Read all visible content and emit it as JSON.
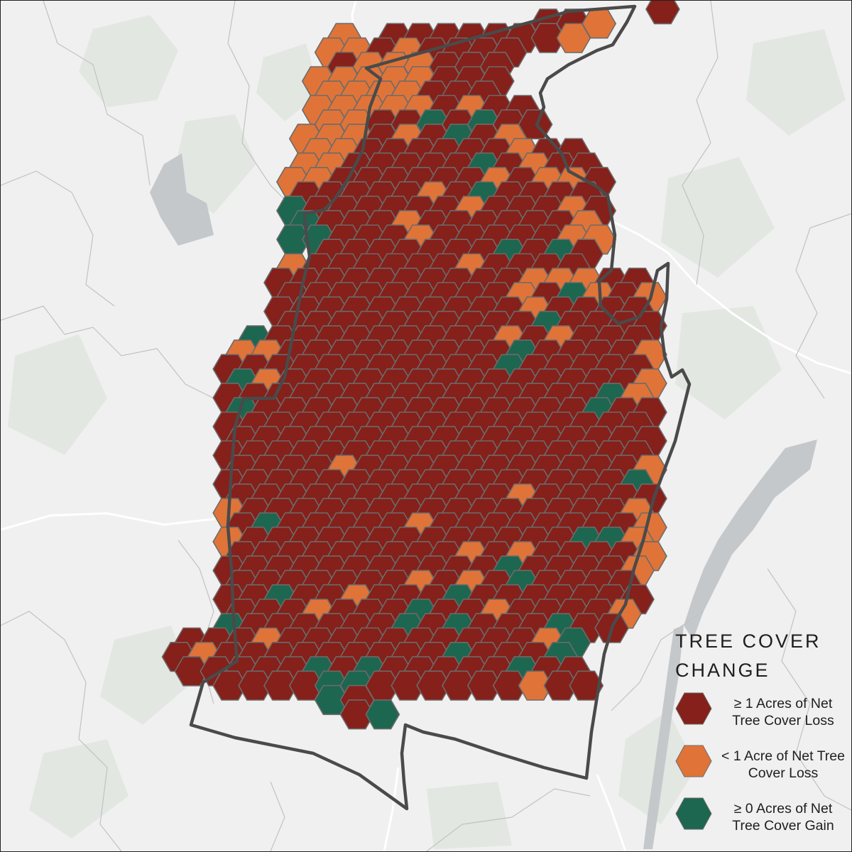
{
  "colors": {
    "background": "#f0f0f0",
    "land_patch": "#e2e7e2",
    "roads": "#ffffff",
    "boundaries": "#c2c2c2",
    "water": "#c5c8cb",
    "outline": "#4a4a4a",
    "hex_border": "#6b6b6b",
    "net_loss_ge1": "#85201a",
    "net_loss_lt1": "#e07438",
    "net_gain": "#1d6650"
  },
  "legend": {
    "title": "TREE COVER CHANGE",
    "items": [
      {
        "key": "net_loss_ge1",
        "label": "≥ 1 Acres of Net Tree Cover Loss"
      },
      {
        "key": "net_loss_lt1",
        "label": "< 1 Acre of Net Tree Cover Loss"
      },
      {
        "key": "net_gain",
        "label": "≥ 0 Acres of Net Tree Cover Gain"
      }
    ]
  },
  "hexbins": {
    "category_codes": {
      "R": "net_loss_ge1",
      "O": "net_loss_lt1",
      "G": "net_gain",
      ".": "none"
    },
    "rows": [
      "....................................................R....",
      "...........................................R.R.O.........",
      "...........................O...R.R.R.R.R.R.R.O...........",
      "..........................O.O.R.O.R.R.R.R................",
      "...........................R.O.O.O.R.R.R.................",
      ".........................O.O.O.O.O.R.R.R.................",
      "..........................O.O.O.O.R.R.R..................",
      ".........................O.O.O.O.O.R.O.R.R...............",
      "..........................O.O.R.R.G.R.G.R.R..............",
      "........................O.O.O.R.O.R.G.R.O................",
      ".........................O.O.R.R.R.R.R.R.O.R.R...........",
      "........................O.O.R.R.R.R.R.G.R.O.R.R..........",
      ".......................O.O.R.R.R.R.R.R.O.R.O.O.R.........",
      "........................R.R.R.R.R.O.R.G.R.R.R.R..........",
      ".......................G.R.R.R.R.R.R.O.R.R.R.O.R.........",
      "........................G.R.R.R.O.R.R.R.R.R.R.O..........",
      ".......................G.G.R.R.R.O.R.R.R.R.R.O.O.........",
      "..........................R.R.R.R.R.R.R.G.R.G.R..........",
      ".......................O.R.R.R.R.R.R.O.R.R.R.R...........",
      "......................R.R.R.R.R.R.R.R.R.R.O.O.O.R.R......",
      ".......................R.R.R.R.R.R.R.R.R.O.R.G.O.R.O.....",
      "......................R.R.R.R.R.R.R.R.R.R.O.R.R.R.R......",
      ".......................R.R.R.R.R.R.R.R.R.R.G.R.R.R.R.....",
      "....................G.R.R.R.R.R.R.R.R.R.O.R.O.R.R.R......",
      "...................O.O.R.R.R.R.R.R.R.R.R.G.R.R.R.R.O.....",
      "..................R.R.R.R.R.R.R.R.R.R.R.G.R.R.R.R.R......",
      "...................G.O.R.R.R.R.R.R.R.R.R.R.R.R.R.R.O.....",
      "..................R.R.R.R.R.R.R.R.R.R.R.R.R.R.R.G.O......",
      "...................G.R.R.R.R.R.R.R.R.R.R.R.R.R.G.R.R.....",
      "..................R.R.R.R.R.R.R.R.R.R.R.R.R.R.R.R.R......",
      "...................R.R.R.R.R.R.R.R.R.R.R.R.R.R.R.R.R.....",
      "..................R.R.R.R.R.R.R.R.R.R.R.R.R.R.R.R.R......",
      "...................R.R.R.R.O.R.R.R.R.R.R.R.R.R.R.R.O.....",
      "..................R.R.R.R.R.R.R.R.R.R.R.R.R.R.R.R.G......",
      "...................R.R.R.R.R.R.R.R.R.R.R.O.R.R.R.R.R.....",
      "..................O.R.R.R.R.R.R.R.R.R.R.R.R.R.R.R.O......",
      "...................R.G.R.R.R.R.R.O.R.R.R.R.R.R.R.R.O.....",
      "..................O.R.R.R.R.R.R.R.R.R.R.R.R.R.G.G.O......",
      "...................R.R.R.R.R.R.R.R.R.O.R.O.R.R.R.R.O.....",
      "..................R.R.R.R.R.R.R.R.R.R.R.G.R.R.R.R.O......",
      "...................R.R.R.R.R.R.R.O.R.O.R.G.R.R.R.R.......",
      "..................R.R.G.R.R.O.R.R.R.G.R.R.R.R.R.R.R......",
      "...................R.R.R.O.R.R.R.G.R.R.O.R.R.R.R.O.......",
      "..................G.R.R.R.R.R.R.G.R.G.R.R.R.G.R.R........",
      "...............R.R.R.O.R.R.R.R.R.R.R.R.R.R.O.G...........",
      "..............R.O.R.R.R.R.R.R.R.R.R.G.R.R.R.G............",
      "...............R.R.R.R.R.G.R.G.R.R.R.R.R.G.R.R...........",
      "..................R.R.R.R.G.G.R.R.R.R.R.R.O.R.R..........",
      "..........................G.R...............................",
      "............................R.G..........................."
    ]
  }
}
